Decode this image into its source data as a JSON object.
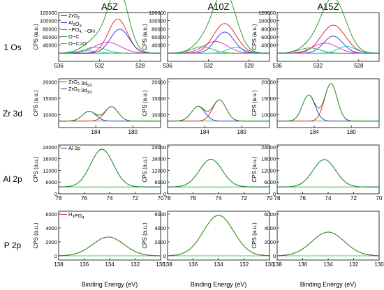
{
  "figure": {
    "column_titles": [
      "A5Z",
      "A10Z",
      "A15Z"
    ],
    "row_labels": [
      "1 Os",
      "Zr 3d",
      "Al 2p",
      "P 2p"
    ],
    "ylabel": "CPS (a.u.)",
    "xlabel": "Binding Energy (eV)"
  },
  "chart_data": [
    {
      "type": "line",
      "row": 0,
      "row_label": "1 Os",
      "xlim": [
        536,
        526
      ],
      "xticks": [
        536,
        532,
        528
      ],
      "ylim": [
        0,
        120000
      ],
      "yticks": [
        40000,
        60000,
        80000,
        100000,
        120000
      ],
      "ylabel": "CPS (a.u.)",
      "legend": {
        "panel": 0,
        "placement": "top-left",
        "entries": [
          {
            "text": "ZrO2",
            "color": "#e8102a"
          },
          {
            "text": "Al2O3",
            "color": "#2a2ad6"
          },
          {
            "text": "-PO4, -OH",
            "color": "#e020d8"
          },
          {
            "text": "O-C",
            "color": "#20b020"
          },
          {
            "text": "O-C=O",
            "color": "#20c0c0"
          }
        ]
      },
      "panels": [
        {
          "title": "A5Z",
          "baseline": 20000,
          "peaks": [
            {
              "name": "ZrO2",
              "center": 530.2,
              "height": 84000,
              "fwhm": 2.2,
              "color": "#e8102a"
            },
            {
              "name": "Al2O3",
              "center": 530.0,
              "height": 59000,
              "fwhm": 2.2,
              "color": "#2a2ad6"
            },
            {
              "name": "-PO4, -OH",
              "center": 531.2,
              "height": 27000,
              "fwhm": 3.0,
              "color": "#e020d8"
            },
            {
              "name": "O-C",
              "center": 532.4,
              "height": 15000,
              "fwhm": 2.4,
              "color": "#20b020"
            },
            {
              "name": "O-C=O",
              "center": 533.2,
              "height": 6000,
              "fwhm": 2.4,
              "color": "#20c0c0"
            }
          ]
        },
        {
          "title": "A10Z",
          "baseline": 20000,
          "peaks": [
            {
              "name": "ZrO2",
              "center": 530.4,
              "height": 73000,
              "fwhm": 2.6,
              "color": "#e8102a"
            },
            {
              "name": "Al2O3",
              "center": 530.4,
              "height": 52000,
              "fwhm": 2.2,
              "color": "#2a2ad6"
            },
            {
              "name": "-PO4, -OH",
              "center": 531.3,
              "height": 29000,
              "fwhm": 2.8,
              "color": "#e020d8"
            },
            {
              "name": "O-C",
              "center": 532.6,
              "height": 16000,
              "fwhm": 2.4,
              "color": "#20b020"
            },
            {
              "name": "O-C=O",
              "center": 529.3,
              "height": 14000,
              "fwhm": 2.0,
              "color": "#20c0c0"
            }
          ]
        },
        {
          "title": "A15Z",
          "baseline": 20000,
          "peaks": [
            {
              "name": "ZrO2",
              "center": 530.5,
              "height": 69000,
              "fwhm": 2.8,
              "color": "#e8102a"
            },
            {
              "name": "Al2O3",
              "center": 530.5,
              "height": 42000,
              "fwhm": 2.2,
              "color": "#2a2ad6"
            },
            {
              "name": "-PO4, -OH",
              "center": 531.3,
              "height": 25000,
              "fwhm": 2.8,
              "color": "#e020d8"
            },
            {
              "name": "O-C",
              "center": 532.8,
              "height": 13000,
              "fwhm": 2.4,
              "color": "#20b020"
            },
            {
              "name": "O-C=O",
              "center": 529.2,
              "height": 17000,
              "fwhm": 2.0,
              "color": "#20c0c0"
            }
          ]
        }
      ]
    },
    {
      "type": "line",
      "row": 1,
      "row_label": "Zr 3d",
      "xlim": [
        188,
        177
      ],
      "xticks": [
        184,
        180
      ],
      "ylim": [
        6000,
        21000
      ],
      "yticks": [
        10000,
        15000,
        20000
      ],
      "ylabel": "CPS (a.u.)",
      "legend": {
        "panel": 0,
        "placement": "top-left",
        "entries": [
          {
            "text": "ZrO2 3d5/2",
            "color": "#e8102a"
          },
          {
            "text": "ZrO2 3d3/2",
            "color": "#2a2ad6"
          }
        ]
      },
      "panels": [
        {
          "title": "A5Z",
          "baseline": 8000,
          "peaks": [
            {
              "name": "ZrO2 3d5/2",
              "center": 182.3,
              "height": 4400,
              "fwhm": 1.7,
              "color": "#e8102a"
            },
            {
              "name": "ZrO2 3d3/2",
              "center": 184.7,
              "height": 3000,
              "fwhm": 1.7,
              "color": "#2a2ad6"
            }
          ]
        },
        {
          "title": "A10Z",
          "baseline": 8000,
          "peaks": [
            {
              "name": "ZrO2 3d5/2",
              "center": 182.4,
              "height": 6500,
              "fwhm": 1.7,
              "color": "#e8102a"
            },
            {
              "name": "ZrO2 3d3/2",
              "center": 184.7,
              "height": 4500,
              "fwhm": 1.7,
              "color": "#2a2ad6"
            }
          ]
        },
        {
          "title": "A15Z",
          "baseline": 8000,
          "peaks": [
            {
              "name": "ZrO2 3d5/2",
              "center": 182.2,
              "height": 11500,
              "fwhm": 1.6,
              "color": "#e8102a"
            },
            {
              "name": "ZrO2 3d3/2",
              "center": 184.6,
              "height": 8000,
              "fwhm": 1.6,
              "color": "#2a2ad6"
            }
          ]
        }
      ]
    },
    {
      "type": "line",
      "row": 2,
      "row_label": "Al 2p",
      "xlim": [
        78,
        70
      ],
      "xticks": [
        78,
        76,
        74,
        72,
        70
      ],
      "ylim": [
        0,
        25000
      ],
      "yticks": [
        0,
        6000,
        12000,
        18000,
        24000
      ],
      "ylabel": "CPS (a.u.)",
      "legend": {
        "panel": 0,
        "placement": "top-left",
        "entries": [
          {
            "text": "Al 2p",
            "color": "#2a2ad6"
          }
        ]
      },
      "panels": [
        {
          "title": "A5Z",
          "baseline": 3500,
          "peaks": [
            {
              "name": "Al 2p",
              "center": 74.6,
              "height": 19300,
              "fwhm": 2.1,
              "color": "#2a2ad6"
            }
          ]
        },
        {
          "title": "A10Z",
          "baseline": 3500,
          "peaks": [
            {
              "name": "Al 2p",
              "center": 74.6,
              "height": 14200,
              "fwhm": 2.1,
              "color": "#2a2ad6"
            }
          ]
        },
        {
          "title": "A15Z",
          "baseline": 3500,
          "peaks": [
            {
              "name": "Al 2p",
              "center": 74.3,
              "height": 14000,
              "fwhm": 2.1,
              "color": "#2a2ad6"
            }
          ]
        }
      ]
    },
    {
      "type": "line",
      "row": 3,
      "row_label": "P 2p",
      "xlim": [
        138,
        130
      ],
      "xticks": [
        138,
        136,
        134,
        132,
        130
      ],
      "ylim": [
        -600,
        6400
      ],
      "yticks": [
        0,
        2000,
        4000,
        6000
      ],
      "ylabel": "CPS (a.u.)",
      "xlabel": "Binding Energy (eV)",
      "legend": {
        "panel": 0,
        "placement": "top-left",
        "entries": [
          {
            "text": "H3PO4",
            "color": "#e8102a"
          }
        ]
      },
      "panels": [
        {
          "title": "A5Z",
          "baseline": 0,
          "peaks": [
            {
              "name": "H3PO4",
              "center": 134.1,
              "height": 2700,
              "fwhm": 2.9,
              "color": "#e8102a"
            }
          ]
        },
        {
          "title": "A10Z",
          "baseline": 0,
          "peaks": [
            {
              "name": "H3PO4",
              "center": 134.0,
              "height": 5800,
              "fwhm": 2.8,
              "color": "#e8102a"
            }
          ]
        },
        {
          "title": "A15Z",
          "baseline": 0,
          "peaks": [
            {
              "name": "H3PO4",
              "center": 134.0,
              "height": 3400,
              "fwhm": 3.0,
              "color": "#e8102a"
            }
          ]
        }
      ]
    }
  ]
}
